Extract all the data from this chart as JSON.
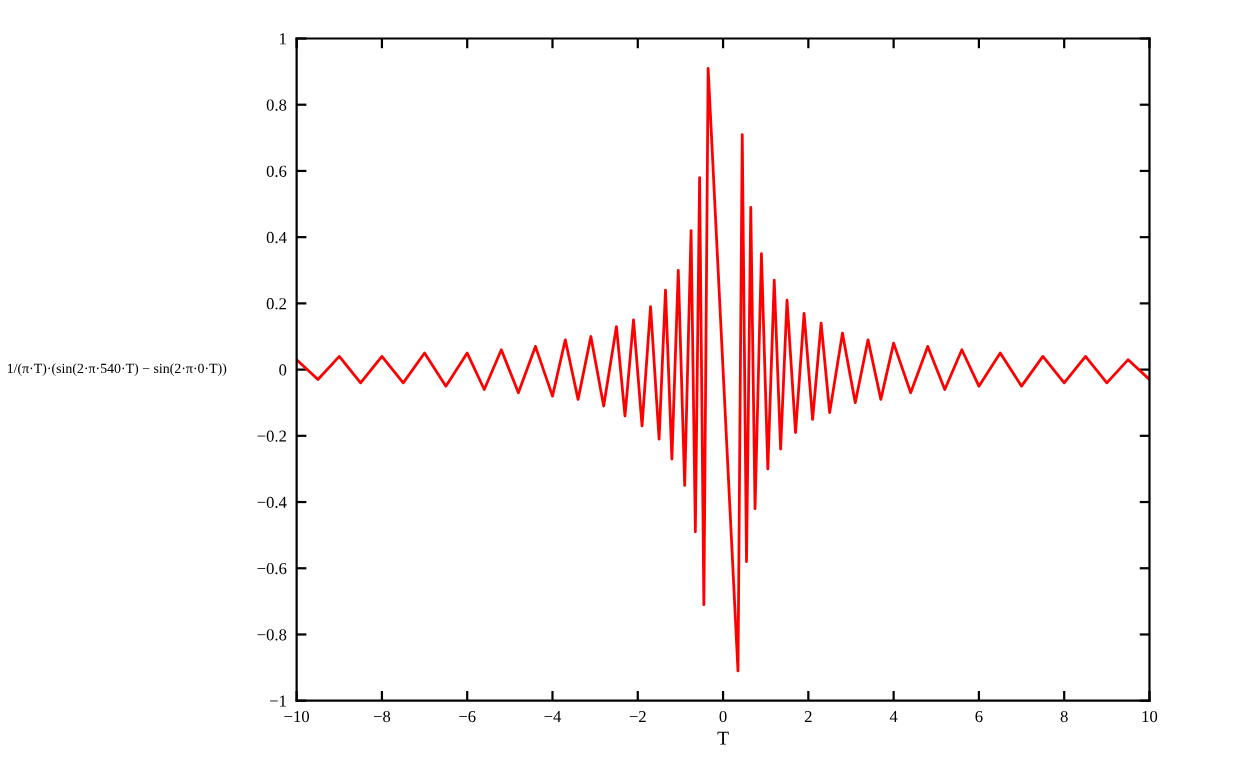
{
  "chart_data": {
    "type": "line",
    "xlabel": "T",
    "ylabel": "1/(π·T)·(sin(2·π·540·T) − sin(2·π·0·T))",
    "x": [
      -10,
      -9.5,
      -9,
      -8.5,
      -8,
      -7.5,
      -7,
      -6.5,
      -6,
      -5.6,
      -5.2,
      -4.8,
      -4.4,
      -4,
      -3.7,
      -3.4,
      -3.1,
      -2.8,
      -2.5,
      -2.3,
      -2.1,
      -1.9,
      -1.7,
      -1.5,
      -1.35,
      -1.2,
      -1.05,
      -0.9,
      -0.75,
      -0.65,
      -0.55,
      -0.45,
      -0.35,
      0.35,
      0.45,
      0.55,
      0.65,
      0.75,
      0.9,
      1.05,
      1.2,
      1.35,
      1.5,
      1.7,
      1.9,
      2.1,
      2.3,
      2.5,
      2.8,
      3.1,
      3.4,
      3.7,
      4,
      4.4,
      4.8,
      5.2,
      5.6,
      6,
      6.5,
      7,
      7.5,
      8,
      8.5,
      9,
      9.5,
      10
    ],
    "series": [
      {
        "color": "#ff0000",
        "values": [
          0.03,
          -0.03,
          0.04,
          -0.04,
          0.04,
          -0.04,
          0.05,
          -0.05,
          0.05,
          -0.06,
          0.06,
          -0.07,
          0.07,
          -0.08,
          0.09,
          -0.09,
          0.1,
          -0.11,
          0.13,
          -0.14,
          0.15,
          -0.17,
          0.19,
          -0.21,
          0.24,
          -0.27,
          0.3,
          -0.35,
          0.42,
          -0.49,
          0.58,
          -0.71,
          0.91,
          -0.91,
          0.71,
          -0.58,
          0.49,
          -0.42,
          0.35,
          -0.3,
          0.27,
          -0.24,
          0.21,
          -0.19,
          0.17,
          -0.15,
          0.14,
          -0.13,
          0.11,
          -0.1,
          0.09,
          -0.09,
          0.08,
          -0.07,
          0.07,
          -0.06,
          0.06,
          -0.05,
          0.05,
          -0.05,
          0.04,
          -0.04,
          0.04,
          -0.04,
          0.03,
          -0.03
        ]
      }
    ],
    "xlim": [
      -10,
      10
    ],
    "ylim": [
      -1,
      1
    ],
    "xticks": [
      {
        "value": -10,
        "label": "−10"
      },
      {
        "value": -8,
        "label": "−8"
      },
      {
        "value": -6,
        "label": "−6"
      },
      {
        "value": -4,
        "label": "−4"
      },
      {
        "value": -2,
        "label": "−2"
      },
      0,
      2,
      4,
      6,
      8,
      10
    ],
    "yticks": [
      {
        "value": -1,
        "label": "−1"
      },
      {
        "value": -0.8,
        "label": "−0.8"
      },
      {
        "value": -0.6,
        "label": "−0.6"
      },
      {
        "value": -0.4,
        "label": "−0.4"
      },
      {
        "value": -0.2,
        "label": "−0.2"
      },
      0,
      0.2,
      0.4,
      0.6,
      0.8,
      1
    ],
    "grid": false,
    "legend": false,
    "marker": "none",
    "line_style": "solid"
  }
}
